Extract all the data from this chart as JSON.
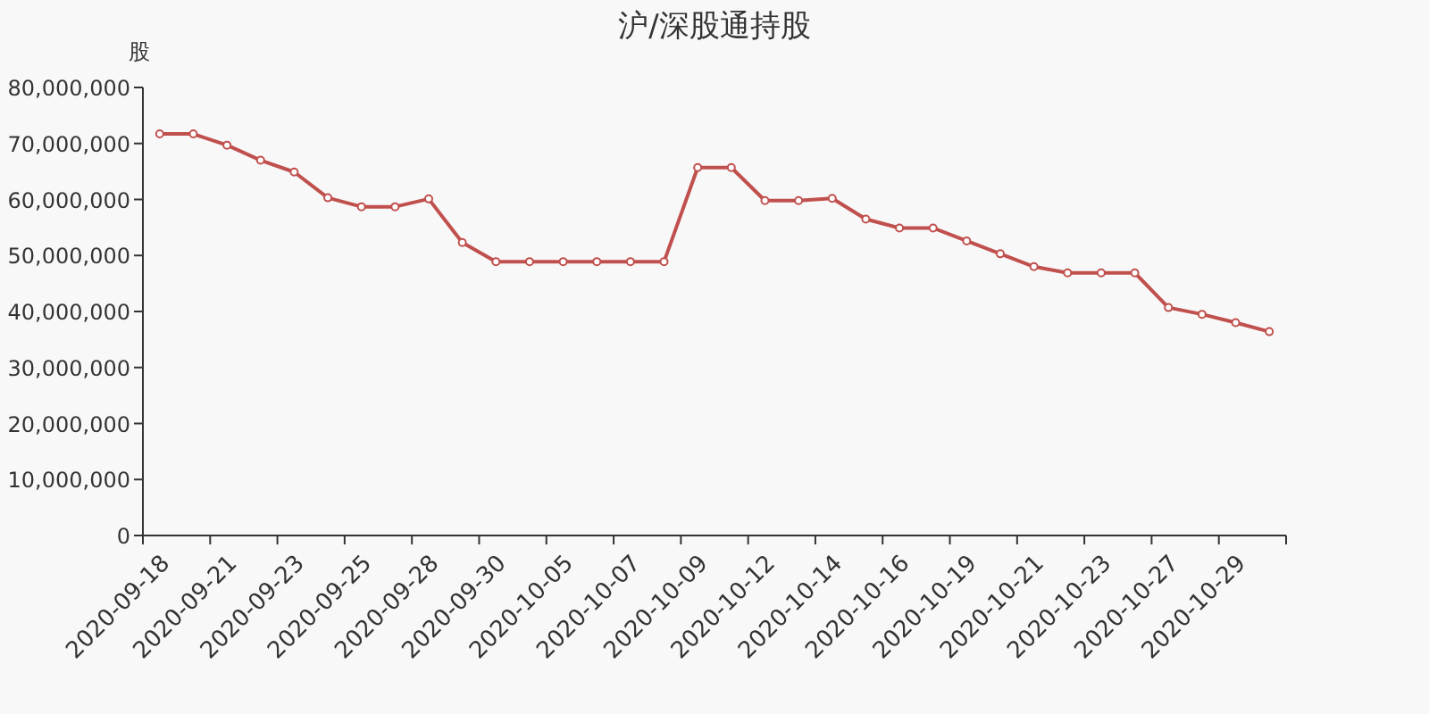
{
  "chart_data": {
    "type": "line",
    "title": "沪/深股通持股",
    "ylabel": "股",
    "categories": [
      "2020-09-18",
      null,
      "2020-09-21",
      null,
      "2020-09-23",
      null,
      "2020-09-25",
      null,
      "2020-09-28",
      null,
      "2020-09-30",
      null,
      "2020-10-05",
      null,
      "2020-10-07",
      null,
      "2020-10-09",
      null,
      "2020-10-12",
      null,
      "2020-10-14",
      null,
      "2020-10-16",
      null,
      "2020-10-19",
      null,
      "2020-10-21",
      null,
      "2020-10-23",
      null,
      "2020-10-27",
      null,
      "2020-10-29",
      null
    ],
    "values": [
      71700000,
      71700000,
      69700000,
      67000000,
      64900000,
      60300000,
      58700000,
      58700000,
      60100000,
      52300000,
      48900000,
      48900000,
      48900000,
      48900000,
      48900000,
      48900000,
      65700000,
      65700000,
      59800000,
      59800000,
      60200000,
      56500000,
      54900000,
      54900000,
      52600000,
      50300000,
      48000000,
      46900000,
      46900000,
      46900000,
      40700000,
      39500000,
      38000000,
      36400000
    ],
    "color": "#c0504d",
    "marker": "circle",
    "grid": false,
    "ylim": [
      0,
      80000000
    ],
    "yticks": [
      {
        "value": 0,
        "label": "0"
      },
      {
        "value": 10000000,
        "label": "10,000,000"
      },
      {
        "value": 20000000,
        "label": "20,000,000"
      },
      {
        "value": 30000000,
        "label": "30,000,000"
      },
      {
        "value": 40000000,
        "label": "40,000,000"
      },
      {
        "value": 50000000,
        "label": "50,000,000"
      },
      {
        "value": 60000000,
        "label": "60,000,000"
      },
      {
        "value": 70000000,
        "label": "70,000,000"
      },
      {
        "value": 80000000,
        "label": "80,000,000"
      }
    ]
  }
}
